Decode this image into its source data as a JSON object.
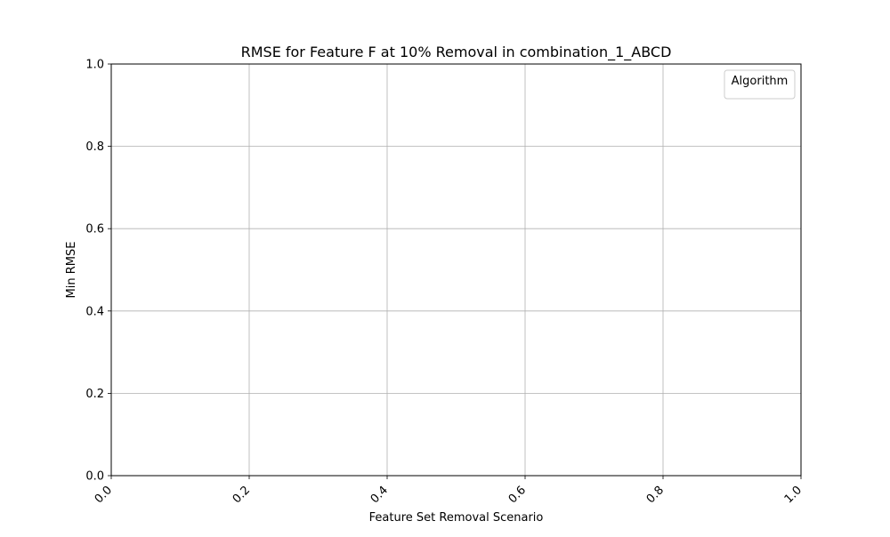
{
  "chart_data": {
    "type": "line",
    "title": "RMSE for Feature F at 10% Removal in combination_1_ABCD",
    "xlabel": "Feature Set Removal Scenario",
    "ylabel": "Min RMSE",
    "xlim": [
      0.0,
      1.0
    ],
    "ylim": [
      0.0,
      1.0
    ],
    "x_ticks": [
      "0.0",
      "0.2",
      "0.4",
      "0.6",
      "0.8",
      "1.0"
    ],
    "y_ticks": [
      "0.0",
      "0.2",
      "0.4",
      "0.6",
      "0.8",
      "1.0"
    ],
    "x_tick_rotation_deg": 45,
    "grid": true,
    "legend": {
      "title": "Algorithm",
      "placement": "top-right",
      "entries": []
    },
    "series": []
  }
}
